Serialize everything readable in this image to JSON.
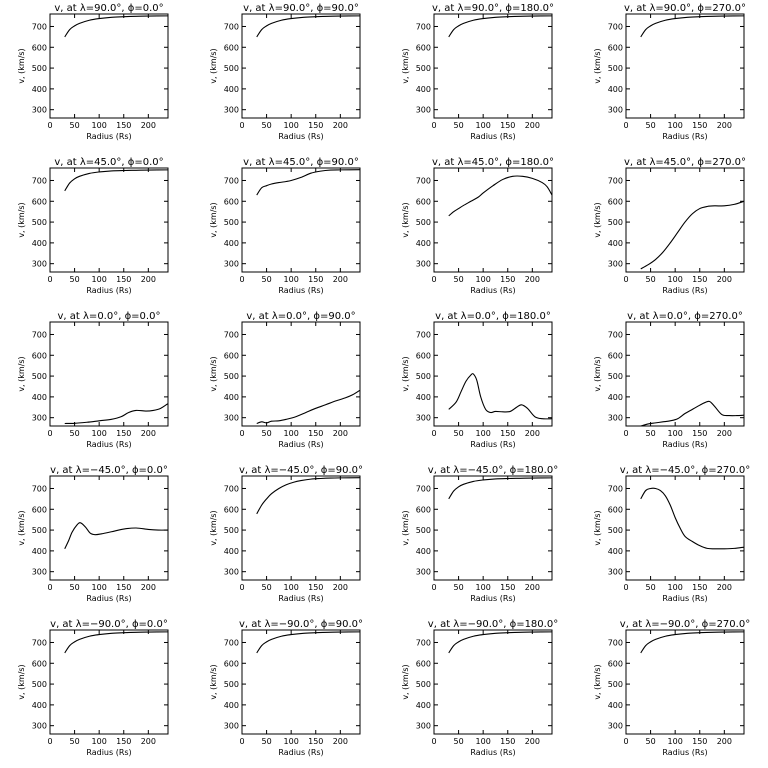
{
  "figure": {
    "background": "#ffffff",
    "ink": "#000000"
  },
  "chart_data": [
    {
      "type": "line",
      "title": "v, at λ=90.0°, ϕ=0.0°",
      "xlabel": "Radius (Rs)",
      "ylabel": "v, (km/s)",
      "xlim": [
        0,
        240
      ],
      "ylim": [
        260,
        760
      ],
      "xticks": [
        0,
        50,
        100,
        150,
        200
      ],
      "yticks": [
        300,
        400,
        500,
        600,
        700
      ],
      "series": [
        {
          "x": [
            30,
            40,
            50,
            60,
            80,
            100,
            125,
            150,
            175,
            200,
            240
          ],
          "y": [
            650,
            685,
            703,
            715,
            730,
            738,
            744,
            747,
            749,
            750,
            751
          ]
        }
      ]
    },
    {
      "type": "line",
      "title": "v, at λ=90.0°, ϕ=90.0°",
      "xlabel": "Radius (Rs)",
      "ylabel": "v, (km/s)",
      "xlim": [
        0,
        240
      ],
      "ylim": [
        260,
        760
      ],
      "xticks": [
        0,
        50,
        100,
        150,
        200
      ],
      "yticks": [
        300,
        400,
        500,
        600,
        700
      ],
      "series": [
        {
          "x": [
            30,
            40,
            50,
            60,
            80,
            100,
            125,
            150,
            175,
            200,
            240
          ],
          "y": [
            650,
            685,
            703,
            715,
            730,
            738,
            744,
            747,
            749,
            750,
            751
          ]
        }
      ]
    },
    {
      "type": "line",
      "title": "v, at λ=90.0°, ϕ=180.0°",
      "xlabel": "Radius (Rs)",
      "ylabel": "v, (km/s)",
      "xlim": [
        0,
        240
      ],
      "ylim": [
        260,
        760
      ],
      "xticks": [
        0,
        50,
        100,
        150,
        200
      ],
      "yticks": [
        300,
        400,
        500,
        600,
        700
      ],
      "series": [
        {
          "x": [
            30,
            40,
            50,
            60,
            80,
            100,
            125,
            150,
            175,
            200,
            240
          ],
          "y": [
            650,
            685,
            703,
            715,
            730,
            738,
            744,
            747,
            749,
            750,
            751
          ]
        }
      ]
    },
    {
      "type": "line",
      "title": "v, at λ=90.0°, ϕ=270.0°",
      "xlabel": "Radius (Rs)",
      "ylabel": "v, (km/s)",
      "xlim": [
        0,
        240
      ],
      "ylim": [
        260,
        760
      ],
      "xticks": [
        0,
        50,
        100,
        150,
        200
      ],
      "yticks": [
        300,
        400,
        500,
        600,
        700
      ],
      "series": [
        {
          "x": [
            30,
            40,
            50,
            60,
            80,
            100,
            125,
            150,
            175,
            200,
            240
          ],
          "y": [
            650,
            685,
            703,
            715,
            730,
            738,
            744,
            747,
            749,
            750,
            751
          ]
        }
      ]
    },
    {
      "type": "line",
      "title": "v, at λ=45.0°, ϕ=0.0°",
      "xlabel": "Radius (Rs)",
      "ylabel": "v, (km/s)",
      "xlim": [
        0,
        240
      ],
      "ylim": [
        260,
        760
      ],
      "xticks": [
        0,
        50,
        100,
        150,
        200
      ],
      "yticks": [
        300,
        400,
        500,
        600,
        700
      ],
      "series": [
        {
          "x": [
            30,
            40,
            50,
            60,
            80,
            100,
            125,
            150,
            175,
            200,
            240
          ],
          "y": [
            650,
            688,
            708,
            720,
            734,
            741,
            746,
            748,
            749,
            750,
            751
          ]
        }
      ]
    },
    {
      "type": "line",
      "title": "v, at λ=45.0°, ϕ=90.0°",
      "xlabel": "Radius (Rs)",
      "ylabel": "v, (km/s)",
      "xlim": [
        0,
        240
      ],
      "ylim": [
        260,
        760
      ],
      "xticks": [
        0,
        50,
        100,
        150,
        200
      ],
      "yticks": [
        300,
        400,
        500,
        600,
        700
      ],
      "series": [
        {
          "x": [
            30,
            40,
            50,
            60,
            75,
            90,
            100,
            120,
            140,
            160,
            180,
            200,
            240
          ],
          "y": [
            630,
            665,
            675,
            683,
            690,
            695,
            700,
            715,
            735,
            745,
            750,
            751,
            752
          ]
        }
      ]
    },
    {
      "type": "line",
      "title": "v, at λ=45.0°, ϕ=180.0°",
      "xlabel": "Radius (Rs)",
      "ylabel": "v, (km/s)",
      "xlim": [
        0,
        240
      ],
      "ylim": [
        260,
        760
      ],
      "xticks": [
        0,
        50,
        100,
        150,
        200
      ],
      "yticks": [
        300,
        400,
        500,
        600,
        700
      ],
      "series": [
        {
          "x": [
            30,
            40,
            50,
            60,
            75,
            90,
            100,
            120,
            140,
            160,
            180,
            200,
            220,
            230,
            240
          ],
          "y": [
            530,
            550,
            565,
            580,
            600,
            620,
            640,
            675,
            705,
            720,
            720,
            710,
            690,
            670,
            630
          ]
        }
      ]
    },
    {
      "type": "line",
      "title": "v, at λ=45.0°, ϕ=270.0°",
      "xlabel": "Radius (Rs)",
      "ylabel": "v, (km/s)",
      "xlim": [
        0,
        240
      ],
      "ylim": [
        260,
        760
      ],
      "xticks": [
        0,
        50,
        100,
        150,
        200
      ],
      "yticks": [
        300,
        400,
        500,
        600,
        700
      ],
      "series": [
        {
          "x": [
            30,
            45,
            60,
            75,
            90,
            105,
            120,
            135,
            150,
            165,
            180,
            200,
            220,
            240
          ],
          "y": [
            275,
            295,
            320,
            355,
            400,
            450,
            500,
            540,
            565,
            575,
            578,
            578,
            585,
            600
          ]
        }
      ]
    },
    {
      "type": "line",
      "title": "v, at λ=0.0°, ϕ=0.0°",
      "xlabel": "Radius (Rs)",
      "ylabel": "v, (km/s)",
      "xlim": [
        0,
        240
      ],
      "ylim": [
        260,
        760
      ],
      "xticks": [
        0,
        50,
        100,
        150,
        200
      ],
      "yticks": [
        300,
        400,
        500,
        600,
        700
      ],
      "series": [
        {
          "x": [
            30,
            50,
            75,
            100,
            125,
            145,
            160,
            175,
            195,
            210,
            225,
            240
          ],
          "y": [
            272,
            273,
            278,
            285,
            292,
            305,
            325,
            335,
            332,
            335,
            345,
            368
          ]
        }
      ]
    },
    {
      "type": "line",
      "title": "v, at λ=0.0°, ϕ=90.0°",
      "xlabel": "Radius (Rs)",
      "ylabel": "v, (km/s)",
      "xlim": [
        0,
        240
      ],
      "ylim": [
        260,
        760
      ],
      "xticks": [
        0,
        50,
        100,
        150,
        200
      ],
      "yticks": [
        300,
        400,
        500,
        600,
        700
      ],
      "series": [
        {
          "x": [
            30,
            40,
            50,
            60,
            75,
            90,
            110,
            130,
            150,
            170,
            190,
            210,
            225,
            240
          ],
          "y": [
            272,
            280,
            275,
            283,
            285,
            292,
            305,
            325,
            345,
            362,
            380,
            395,
            410,
            432
          ]
        }
      ]
    },
    {
      "type": "line",
      "title": "v, at λ=0.0°, ϕ=180.0°",
      "xlabel": "Radius (Rs)",
      "ylabel": "v, (km/s)",
      "xlim": [
        0,
        240
      ],
      "ylim": [
        260,
        760
      ],
      "xticks": [
        0,
        50,
        100,
        150,
        200
      ],
      "yticks": [
        300,
        400,
        500,
        600,
        700
      ],
      "series": [
        {
          "x": [
            30,
            45,
            55,
            65,
            75,
            80,
            87,
            95,
            105,
            115,
            125,
            140,
            155,
            168,
            178,
            190,
            205,
            220,
            240
          ],
          "y": [
            340,
            375,
            425,
            475,
            505,
            510,
            480,
            400,
            340,
            325,
            330,
            328,
            330,
            350,
            362,
            345,
            305,
            295,
            295
          ]
        }
      ]
    },
    {
      "type": "line",
      "title": "v, at λ=0.0°, ϕ=270.0°",
      "xlabel": "Radius (Rs)",
      "ylabel": "v, (km/s)",
      "xlim": [
        0,
        240
      ],
      "ylim": [
        260,
        760
      ],
      "xticks": [
        0,
        50,
        100,
        150,
        200
      ],
      "yticks": [
        300,
        400,
        500,
        600,
        700
      ],
      "series": [
        {
          "x": [
            30,
            45,
            60,
            75,
            90,
            105,
            120,
            135,
            150,
            160,
            170,
            180,
            195,
            210,
            225,
            240
          ],
          "y": [
            260,
            270,
            275,
            280,
            285,
            295,
            320,
            340,
            360,
            372,
            378,
            355,
            315,
            310,
            310,
            312
          ]
        }
      ]
    },
    {
      "type": "line",
      "title": "v, at λ=−45.0°, ϕ=0.0°",
      "xlabel": "Radius (Rs)",
      "ylabel": "v, (km/s)",
      "xlim": [
        0,
        240
      ],
      "ylim": [
        260,
        760
      ],
      "xticks": [
        0,
        50,
        100,
        150,
        200
      ],
      "yticks": [
        300,
        400,
        500,
        600,
        700
      ],
      "series": [
        {
          "x": [
            30,
            38,
            45,
            55,
            62,
            72,
            82,
            92,
            105,
            125,
            150,
            175,
            200,
            220,
            240
          ],
          "y": [
            410,
            450,
            490,
            525,
            535,
            515,
            485,
            478,
            482,
            492,
            505,
            510,
            503,
            500,
            500
          ]
        }
      ]
    },
    {
      "type": "line",
      "title": "v, at λ=−45.0°, ϕ=90.0°",
      "xlabel": "Radius (Rs)",
      "ylabel": "v, (km/s)",
      "xlim": [
        0,
        240
      ],
      "ylim": [
        260,
        760
      ],
      "xticks": [
        0,
        50,
        100,
        150,
        200
      ],
      "yticks": [
        300,
        400,
        500,
        600,
        700
      ],
      "series": [
        {
          "x": [
            30,
            40,
            50,
            60,
            75,
            90,
            105,
            120,
            140,
            160,
            180,
            200,
            240
          ],
          "y": [
            578,
            620,
            650,
            675,
            700,
            718,
            730,
            738,
            745,
            748,
            750,
            751,
            752
          ]
        }
      ]
    },
    {
      "type": "line",
      "title": "v, at λ=−45.0°, ϕ=180.0°",
      "xlabel": "Radius (Rs)",
      "ylabel": "v, (km/s)",
      "xlim": [
        0,
        240
      ],
      "ylim": [
        260,
        760
      ],
      "xticks": [
        0,
        50,
        100,
        150,
        200
      ],
      "yticks": [
        300,
        400,
        500,
        600,
        700
      ],
      "series": [
        {
          "x": [
            30,
            40,
            50,
            60,
            80,
            100,
            125,
            150,
            175,
            200,
            240
          ],
          "y": [
            650,
            688,
            708,
            720,
            734,
            741,
            746,
            748,
            749,
            750,
            751
          ]
        }
      ]
    },
    {
      "type": "line",
      "title": "v, at λ=−45.0°, ϕ=270.0°",
      "xlabel": "Radius (Rs)",
      "ylabel": "v, (km/s)",
      "xlim": [
        0,
        240
      ],
      "ylim": [
        260,
        760
      ],
      "xticks": [
        0,
        50,
        100,
        150,
        200
      ],
      "yticks": [
        300,
        400,
        500,
        600,
        700
      ],
      "series": [
        {
          "x": [
            30,
            40,
            50,
            60,
            70,
            80,
            90,
            100,
            110,
            120,
            135,
            150,
            165,
            180,
            200,
            220,
            240
          ],
          "y": [
            650,
            690,
            700,
            700,
            690,
            665,
            620,
            560,
            510,
            470,
            445,
            425,
            412,
            410,
            410,
            412,
            418
          ]
        }
      ]
    },
    {
      "type": "line",
      "title": "v, at λ=−90.0°, ϕ=0.0°",
      "xlabel": "Radius (Rs)",
      "ylabel": "v, (km/s)",
      "xlim": [
        0,
        240
      ],
      "ylim": [
        260,
        760
      ],
      "xticks": [
        0,
        50,
        100,
        150,
        200
      ],
      "yticks": [
        300,
        400,
        500,
        600,
        700
      ],
      "series": [
        {
          "x": [
            30,
            40,
            50,
            60,
            80,
            100,
            125,
            150,
            175,
            200,
            240
          ],
          "y": [
            650,
            685,
            703,
            715,
            730,
            738,
            744,
            747,
            749,
            750,
            751
          ]
        }
      ]
    },
    {
      "type": "line",
      "title": "v, at λ=−90.0°, ϕ=90.0°",
      "xlabel": "Radius (Rs)",
      "ylabel": "v, (km/s)",
      "xlim": [
        0,
        240
      ],
      "ylim": [
        260,
        760
      ],
      "xticks": [
        0,
        50,
        100,
        150,
        200
      ],
      "yticks": [
        300,
        400,
        500,
        600,
        700
      ],
      "series": [
        {
          "x": [
            30,
            40,
            50,
            60,
            80,
            100,
            125,
            150,
            175,
            200,
            240
          ],
          "y": [
            650,
            685,
            703,
            715,
            730,
            738,
            744,
            747,
            749,
            750,
            751
          ]
        }
      ]
    },
    {
      "type": "line",
      "title": "v, at λ=−90.0°, ϕ=180.0°",
      "xlabel": "Radius (Rs)",
      "ylabel": "v, (km/s)",
      "xlim": [
        0,
        240
      ],
      "ylim": [
        260,
        760
      ],
      "xticks": [
        0,
        50,
        100,
        150,
        200
      ],
      "yticks": [
        300,
        400,
        500,
        600,
        700
      ],
      "series": [
        {
          "x": [
            30,
            40,
            50,
            60,
            80,
            100,
            125,
            150,
            175,
            200,
            240
          ],
          "y": [
            650,
            685,
            703,
            715,
            730,
            738,
            744,
            747,
            749,
            750,
            751
          ]
        }
      ]
    },
    {
      "type": "line",
      "title": "v, at λ=−90.0°, ϕ=270.0°",
      "xlabel": "Radius (Rs)",
      "ylabel": "v, (km/s)",
      "xlim": [
        0,
        240
      ],
      "ylim": [
        260,
        760
      ],
      "xticks": [
        0,
        50,
        100,
        150,
        200
      ],
      "yticks": [
        300,
        400,
        500,
        600,
        700
      ],
      "series": [
        {
          "x": [
            30,
            40,
            50,
            60,
            80,
            100,
            125,
            150,
            175,
            200,
            240
          ],
          "y": [
            650,
            685,
            703,
            715,
            730,
            738,
            744,
            747,
            749,
            750,
            751
          ]
        }
      ]
    }
  ]
}
